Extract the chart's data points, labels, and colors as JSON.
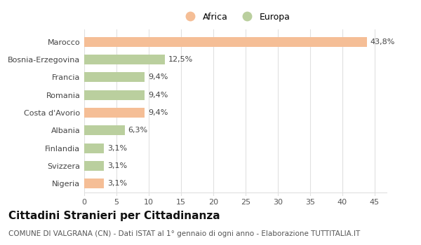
{
  "categories": [
    "Nigeria",
    "Svizzera",
    "Finlandia",
    "Albania",
    "Costa d'Avorio",
    "Romania",
    "Francia",
    "Bosnia-Erzegovina",
    "Marocco"
  ],
  "values": [
    3.1,
    3.1,
    3.1,
    6.3,
    9.4,
    9.4,
    9.4,
    12.5,
    43.8
  ],
  "labels": [
    "3,1%",
    "3,1%",
    "3,1%",
    "6,3%",
    "9,4%",
    "9,4%",
    "9,4%",
    "12,5%",
    "43,8%"
  ],
  "continents": [
    "Africa",
    "Europa",
    "Europa",
    "Europa",
    "Africa",
    "Europa",
    "Europa",
    "Europa",
    "Africa"
  ],
  "colors": {
    "Africa": "#F5BE96",
    "Europa": "#BACF9E"
  },
  "legend": [
    "Africa",
    "Europa"
  ],
  "xlim": [
    0,
    47
  ],
  "xticks": [
    0,
    5,
    10,
    15,
    20,
    25,
    30,
    35,
    40,
    45
  ],
  "title": "Cittadini Stranieri per Cittadinanza",
  "subtitle": "COMUNE DI VALGRANA (CN) - Dati ISTAT al 1° gennaio di ogni anno - Elaborazione TUTTITALIA.IT",
  "background_color": "#ffffff",
  "grid_color": "#e0e0e0",
  "bar_height": 0.55,
  "label_fontsize": 8,
  "title_fontsize": 11,
  "subtitle_fontsize": 7.5,
  "tick_fontsize": 8,
  "legend_fontsize": 9
}
